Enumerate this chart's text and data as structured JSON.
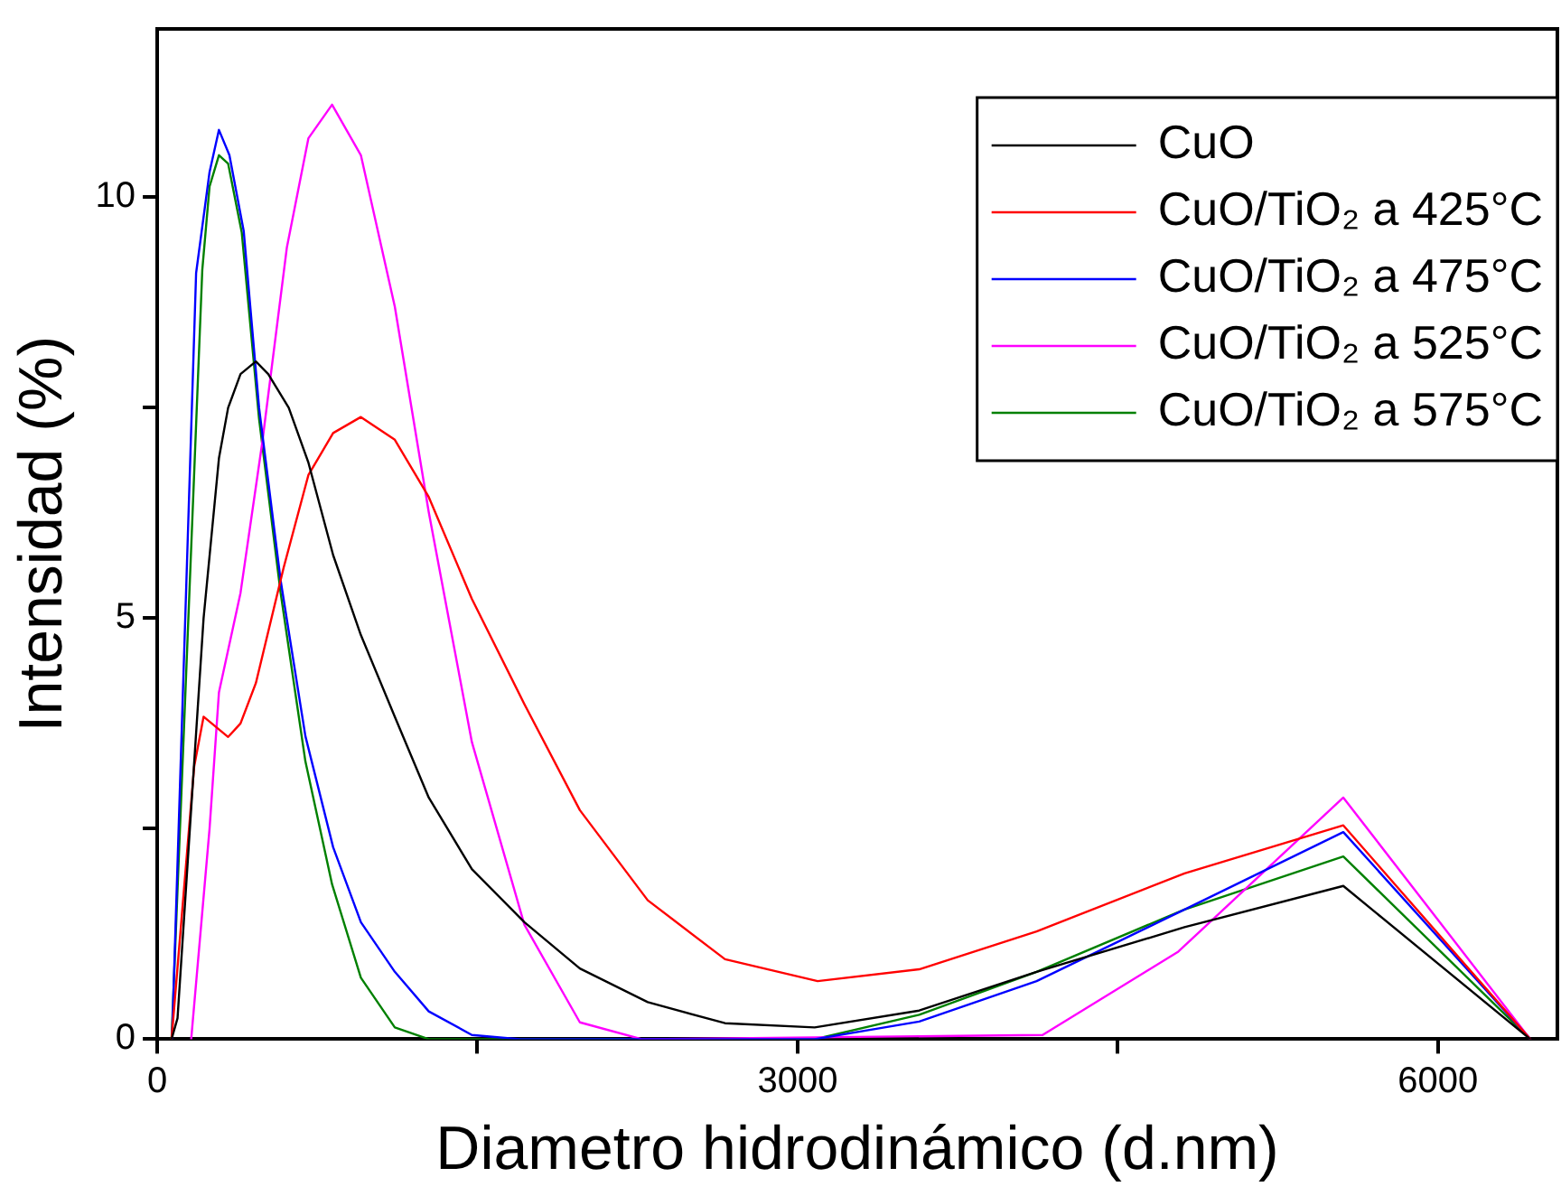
{
  "chart_data": {
    "type": "line",
    "xlabel": "Diametro hidrodinámico (d.nm)",
    "ylabel": "Intensidad (%)",
    "xlim": [
      0,
      6560
    ],
    "ylim": [
      0,
      12
    ],
    "xticks": [
      0,
      {
        "value": 1500,
        "label": null
      },
      3000,
      {
        "value": 4500,
        "label": null
      },
      6000
    ],
    "yticks": [
      0,
      {
        "value": 2.5,
        "label": null
      },
      5,
      {
        "value": 7.5,
        "label": null
      },
      10
    ],
    "grid": false,
    "legend": "top right",
    "marker": "none",
    "line_style": "solid",
    "series": [
      {
        "name": "CuO",
        "color": "#000000",
        "x": [
          67,
          95,
          217,
          289,
          332,
          390,
          462,
          520,
          616,
          708,
          824,
          954,
          1113,
          1272,
          1474,
          1720,
          1980,
          2298,
          2660,
          3080,
          3570,
          4120,
          4813,
          5557,
          6433
        ],
        "values": [
          0,
          0.25,
          5.0,
          6.9,
          7.5,
          7.9,
          8.05,
          7.9,
          7.5,
          6.85,
          5.75,
          4.8,
          3.83,
          2.87,
          2.02,
          1.39,
          0.84,
          0.44,
          0.19,
          0.14,
          0.34,
          0.8,
          1.33,
          1.82,
          0
        ]
      },
      {
        "name": "CuO/TiO₂ a 425°C",
        "color": "#ff0000",
        "x": [
          67,
          173,
          217,
          332,
          390,
          462,
          592,
          708,
          824,
          954,
          1113,
          1272,
          1474,
          1720,
          1980,
          2298,
          2660,
          3094,
          3570,
          4120,
          4813,
          5557,
          6433
        ],
        "values": [
          0,
          3.24,
          3.83,
          3.59,
          3.75,
          4.23,
          5.6,
          6.7,
          7.2,
          7.39,
          7.12,
          6.44,
          5.23,
          3.98,
          2.72,
          1.65,
          0.95,
          0.69,
          0.83,
          1.28,
          1.97,
          2.54,
          0
        ]
      },
      {
        "name": "CuO/TiO₂ a 475°C",
        "color": "#0000ff",
        "x": [
          69,
          182,
          245,
          289,
          338,
          405,
          477,
          578,
          694,
          824,
          954,
          1113,
          1272,
          1474,
          1700,
          3080,
          3570,
          4120,
          4813,
          5557,
          6433
        ],
        "values": [
          0,
          9.1,
          10.3,
          10.8,
          10.5,
          9.6,
          7.5,
          5.45,
          3.6,
          2.28,
          1.39,
          0.8,
          0.33,
          0.05,
          0,
          0,
          0.21,
          0.69,
          1.54,
          2.46,
          0
        ]
      },
      {
        "name": "CuO/TiO₂ a 525°C",
        "color": "#ff00ff",
        "x": [
          159,
          245,
          289,
          390,
          491,
          607,
          708,
          819,
          954,
          1113,
          1272,
          1474,
          1720,
          1980,
          2270,
          4148,
          4784,
          5557,
          6433
        ],
        "values": [
          0,
          2.5,
          4.12,
          5.3,
          7.07,
          9.4,
          10.7,
          11.1,
          10.5,
          8.7,
          6.26,
          3.53,
          1.36,
          0.2,
          0,
          0.05,
          1.04,
          2.87,
          0
        ]
      },
      {
        "name": "CuO/TiO₂ a 575°C",
        "color": "#008000",
        "x": [
          67,
          211,
          245,
          289,
          332,
          396,
          477,
          578,
          694,
          819,
          954,
          1113,
          1272,
          3080,
          3570,
          4120,
          4813,
          5557,
          6433
        ],
        "values": [
          0,
          9.14,
          10.13,
          10.5,
          10.4,
          9.58,
          7.37,
          5.3,
          3.3,
          1.84,
          0.73,
          0.14,
          0,
          0,
          0.29,
          0.8,
          1.54,
          2.17,
          0
        ]
      }
    ]
  }
}
